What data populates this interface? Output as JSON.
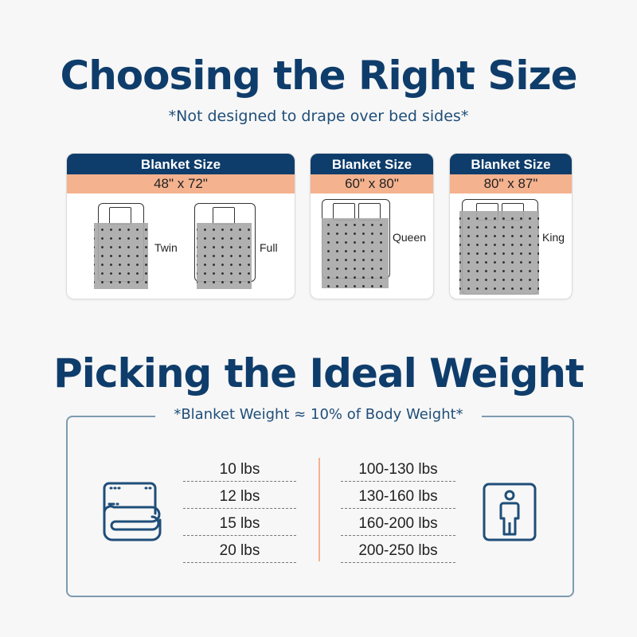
{
  "size_section": {
    "title": "Choosing the Right Size",
    "subtitle": "*Not designed to drape over bed sides*",
    "cards": [
      {
        "header": "Blanket Size",
        "size": "48\" x 72\"",
        "beds": [
          "Twin",
          "Full"
        ]
      },
      {
        "header": "Blanket Size",
        "size": "60\" x 80\"",
        "beds": [
          "Queen"
        ]
      },
      {
        "header": "Blanket Size",
        "size": "80\" x 87\"",
        "beds": [
          "King"
        ]
      }
    ]
  },
  "weight_section": {
    "title": "Picking the Ideal Weight",
    "note": "*Blanket Weight ≈ 10% of Body Weight*",
    "blanket_weights": [
      "10 lbs",
      "12 lbs",
      "15 lbs",
      "20 lbs"
    ],
    "body_weights": [
      "100-130 lbs",
      "130-160 lbs",
      "160-200 lbs",
      "200-250 lbs"
    ],
    "left_icon": "folded-blanket-icon",
    "right_icon": "person-icon"
  },
  "colors": {
    "navy": "#0f3d6b",
    "peach": "#f4b28f",
    "border": "#7d9bb0"
  }
}
